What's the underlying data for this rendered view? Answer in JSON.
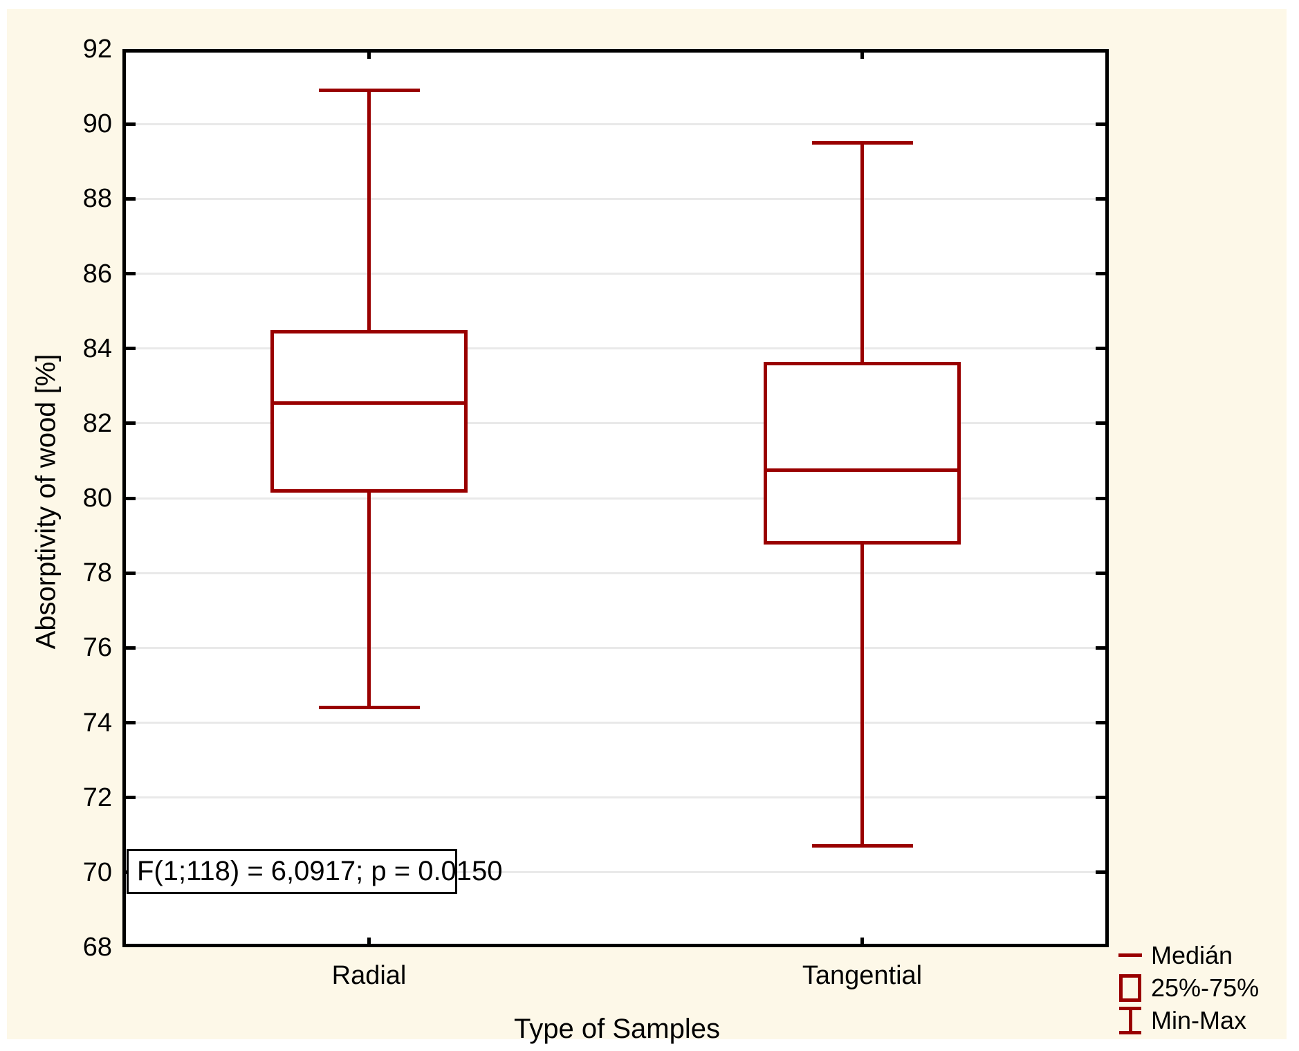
{
  "colors": {
    "series_red": "#990000",
    "panel_background": "#FDF8E8",
    "plot_background": "#FFFFFF",
    "gridline": "#E9E9E9",
    "axis_black": "#000000"
  },
  "chart_data": {
    "type": "box",
    "title": "",
    "xlabel": "Type of Samples",
    "ylabel": "Absorptivity of wood [%]",
    "ylim": [
      68,
      92
    ],
    "yticks": [
      68,
      70,
      72,
      74,
      76,
      78,
      80,
      82,
      84,
      86,
      88,
      90,
      92
    ],
    "grid": "horizontal",
    "categories": [
      "Radial",
      "Tangential"
    ],
    "series": [
      {
        "name": "Radial",
        "min": 74.4,
        "q1": 80.2,
        "median": 82.55,
        "q3": 84.45,
        "max": 90.9
      },
      {
        "name": "Tangential",
        "min": 70.7,
        "q1": 78.8,
        "median": 80.75,
        "q3": 83.6,
        "max": 89.5
      }
    ],
    "annotation": "F(1;118) = 6,0917; p = 0.0150",
    "legend_position": "bottom-right",
    "legend": [
      {
        "symbol": "median-line",
        "label": "Medián"
      },
      {
        "symbol": "box",
        "label": "25%-75%"
      },
      {
        "symbol": "whisker",
        "label": "Min-Max"
      }
    ]
  }
}
